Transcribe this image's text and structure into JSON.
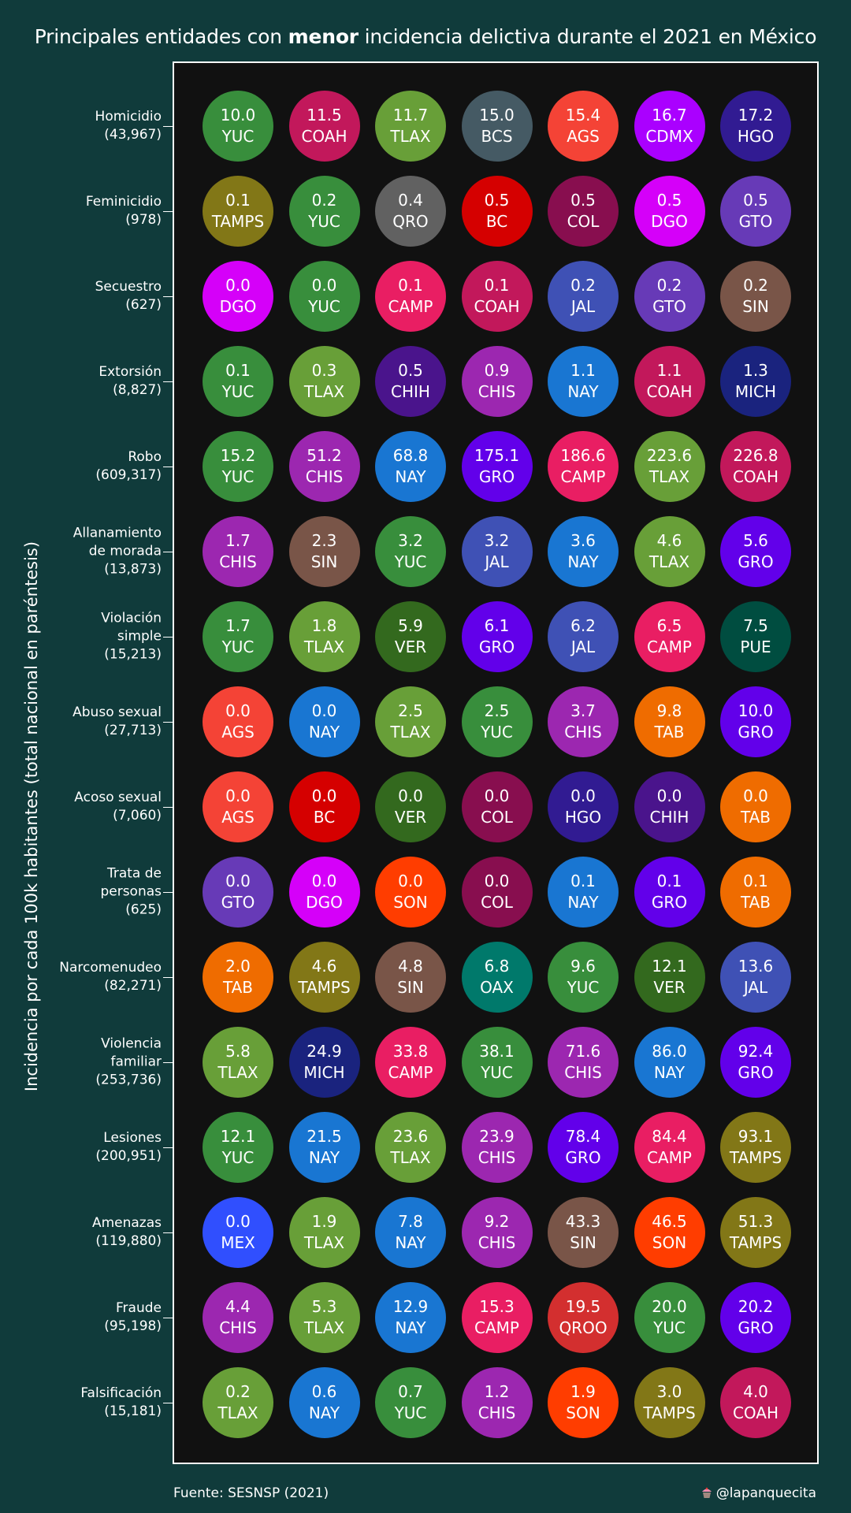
{
  "title": {
    "before": "Principales entidades con ",
    "bold": "menor",
    "after": " incidencia delictiva durante el 2021 en México"
  },
  "footer": {
    "source": "Fuente: SESNSP (2021)",
    "credit": "@lapanquecita"
  },
  "chart_data": {
    "type": "table",
    "ylabel": "Incidencia por cada 100k habitantes (total nacional en paréntesis)",
    "state_colors": {
      "YUC": "#388e3c",
      "COAH": "#c2185b",
      "TLAX": "#689f38",
      "BCS": "#455a64",
      "AGS": "#f44336",
      "CDMX": "#aa00ff",
      "HGO": "#311b92",
      "TAMPS": "#827717",
      "QRO": "#616161",
      "BC": "#d50000",
      "COL": "#880e4f",
      "DGO": "#d500f9",
      "GTO": "#673ab7",
      "CAMP": "#e91e63",
      "JAL": "#3f51b5",
      "SIN": "#795548",
      "CHIH": "#4a148c",
      "CHIS": "#9c27b0",
      "NAY": "#1976d2",
      "MICH": "#1a237e",
      "GRO": "#6200ea",
      "VER": "#33691e",
      "PUE": "#004d40",
      "TAB": "#ef6c00",
      "SON": "#ff3d00",
      "OAX": "#00796b",
      "MEX": "#304ffe",
      "QROO": "#d32f2f"
    },
    "rows": [
      {
        "label": "Homicidio\n(43,967)",
        "cells": [
          {
            "value": "10.0",
            "state": "YUC"
          },
          {
            "value": "11.5",
            "state": "COAH"
          },
          {
            "value": "11.7",
            "state": "TLAX"
          },
          {
            "value": "15.0",
            "state": "BCS"
          },
          {
            "value": "15.4",
            "state": "AGS"
          },
          {
            "value": "16.7",
            "state": "CDMX"
          },
          {
            "value": "17.2",
            "state": "HGO"
          }
        ]
      },
      {
        "label": "Feminicidio\n(978)",
        "cells": [
          {
            "value": "0.1",
            "state": "TAMPS"
          },
          {
            "value": "0.2",
            "state": "YUC"
          },
          {
            "value": "0.4",
            "state": "QRO"
          },
          {
            "value": "0.5",
            "state": "BC"
          },
          {
            "value": "0.5",
            "state": "COL"
          },
          {
            "value": "0.5",
            "state": "DGO"
          },
          {
            "value": "0.5",
            "state": "GTO"
          }
        ]
      },
      {
        "label": "Secuestro\n(627)",
        "cells": [
          {
            "value": "0.0",
            "state": "DGO"
          },
          {
            "value": "0.0",
            "state": "YUC"
          },
          {
            "value": "0.1",
            "state": "CAMP"
          },
          {
            "value": "0.1",
            "state": "COAH"
          },
          {
            "value": "0.2",
            "state": "JAL"
          },
          {
            "value": "0.2",
            "state": "GTO"
          },
          {
            "value": "0.2",
            "state": "SIN"
          }
        ]
      },
      {
        "label": "Extorsión\n(8,827)",
        "cells": [
          {
            "value": "0.1",
            "state": "YUC"
          },
          {
            "value": "0.3",
            "state": "TLAX"
          },
          {
            "value": "0.5",
            "state": "CHIH"
          },
          {
            "value": "0.9",
            "state": "CHIS"
          },
          {
            "value": "1.1",
            "state": "NAY"
          },
          {
            "value": "1.1",
            "state": "COAH"
          },
          {
            "value": "1.3",
            "state": "MICH"
          }
        ]
      },
      {
        "label": "Robo\n(609,317)",
        "cells": [
          {
            "value": "15.2",
            "state": "YUC"
          },
          {
            "value": "51.2",
            "state": "CHIS"
          },
          {
            "value": "68.8",
            "state": "NAY"
          },
          {
            "value": "175.1",
            "state": "GRO"
          },
          {
            "value": "186.6",
            "state": "CAMP"
          },
          {
            "value": "223.6",
            "state": "TLAX"
          },
          {
            "value": "226.8",
            "state": "COAH"
          }
        ]
      },
      {
        "label": "Allanamiento\nde morada\n(13,873)",
        "cells": [
          {
            "value": "1.7",
            "state": "CHIS"
          },
          {
            "value": "2.3",
            "state": "SIN"
          },
          {
            "value": "3.2",
            "state": "YUC"
          },
          {
            "value": "3.2",
            "state": "JAL"
          },
          {
            "value": "3.6",
            "state": "NAY"
          },
          {
            "value": "4.6",
            "state": "TLAX"
          },
          {
            "value": "5.6",
            "state": "GRO"
          }
        ]
      },
      {
        "label": "Violación\nsimple\n(15,213)",
        "cells": [
          {
            "value": "1.7",
            "state": "YUC"
          },
          {
            "value": "1.8",
            "state": "TLAX"
          },
          {
            "value": "5.9",
            "state": "VER"
          },
          {
            "value": "6.1",
            "state": "GRO"
          },
          {
            "value": "6.2",
            "state": "JAL"
          },
          {
            "value": "6.5",
            "state": "CAMP"
          },
          {
            "value": "7.5",
            "state": "PUE"
          }
        ]
      },
      {
        "label": "Abuso sexual\n(27,713)",
        "cells": [
          {
            "value": "0.0",
            "state": "AGS"
          },
          {
            "value": "0.0",
            "state": "NAY"
          },
          {
            "value": "2.5",
            "state": "TLAX"
          },
          {
            "value": "2.5",
            "state": "YUC"
          },
          {
            "value": "3.7",
            "state": "CHIS"
          },
          {
            "value": "9.8",
            "state": "TAB"
          },
          {
            "value": "10.0",
            "state": "GRO"
          }
        ]
      },
      {
        "label": "Acoso sexual\n(7,060)",
        "cells": [
          {
            "value": "0.0",
            "state": "AGS"
          },
          {
            "value": "0.0",
            "state": "BC"
          },
          {
            "value": "0.0",
            "state": "VER"
          },
          {
            "value": "0.0",
            "state": "COL"
          },
          {
            "value": "0.0",
            "state": "HGO"
          },
          {
            "value": "0.0",
            "state": "CHIH"
          },
          {
            "value": "0.0",
            "state": "TAB"
          }
        ]
      },
      {
        "label": "Trata de\npersonas\n(625)",
        "cells": [
          {
            "value": "0.0",
            "state": "GTO"
          },
          {
            "value": "0.0",
            "state": "DGO"
          },
          {
            "value": "0.0",
            "state": "SON"
          },
          {
            "value": "0.0",
            "state": "COL"
          },
          {
            "value": "0.1",
            "state": "NAY"
          },
          {
            "value": "0.1",
            "state": "GRO"
          },
          {
            "value": "0.1",
            "state": "TAB"
          }
        ]
      },
      {
        "label": "Narcomenudeo\n(82,271)",
        "cells": [
          {
            "value": "2.0",
            "state": "TAB"
          },
          {
            "value": "4.6",
            "state": "TAMPS"
          },
          {
            "value": "4.8",
            "state": "SIN"
          },
          {
            "value": "6.8",
            "state": "OAX"
          },
          {
            "value": "9.6",
            "state": "YUC"
          },
          {
            "value": "12.1",
            "state": "VER"
          },
          {
            "value": "13.6",
            "state": "JAL"
          }
        ]
      },
      {
        "label": "Violencia\nfamiliar\n(253,736)",
        "cells": [
          {
            "value": "5.8",
            "state": "TLAX"
          },
          {
            "value": "24.9",
            "state": "MICH"
          },
          {
            "value": "33.8",
            "state": "CAMP"
          },
          {
            "value": "38.1",
            "state": "YUC"
          },
          {
            "value": "71.6",
            "state": "CHIS"
          },
          {
            "value": "86.0",
            "state": "NAY"
          },
          {
            "value": "92.4",
            "state": "GRO"
          }
        ]
      },
      {
        "label": "Lesiones\n(200,951)",
        "cells": [
          {
            "value": "12.1",
            "state": "YUC"
          },
          {
            "value": "21.5",
            "state": "NAY"
          },
          {
            "value": "23.6",
            "state": "TLAX"
          },
          {
            "value": "23.9",
            "state": "CHIS"
          },
          {
            "value": "78.4",
            "state": "GRO"
          },
          {
            "value": "84.4",
            "state": "CAMP"
          },
          {
            "value": "93.1",
            "state": "TAMPS"
          }
        ]
      },
      {
        "label": "Amenazas\n(119,880)",
        "cells": [
          {
            "value": "0.0",
            "state": "MEX"
          },
          {
            "value": "1.9",
            "state": "TLAX"
          },
          {
            "value": "7.8",
            "state": "NAY"
          },
          {
            "value": "9.2",
            "state": "CHIS"
          },
          {
            "value": "43.3",
            "state": "SIN"
          },
          {
            "value": "46.5",
            "state": "SON"
          },
          {
            "value": "51.3",
            "state": "TAMPS"
          }
        ]
      },
      {
        "label": "Fraude\n(95,198)",
        "cells": [
          {
            "value": "4.4",
            "state": "CHIS"
          },
          {
            "value": "5.3",
            "state": "TLAX"
          },
          {
            "value": "12.9",
            "state": "NAY"
          },
          {
            "value": "15.3",
            "state": "CAMP"
          },
          {
            "value": "19.5",
            "state": "QROO"
          },
          {
            "value": "20.0",
            "state": "YUC"
          },
          {
            "value": "20.2",
            "state": "GRO"
          }
        ]
      },
      {
        "label": "Falsificación\n(15,181)",
        "cells": [
          {
            "value": "0.2",
            "state": "TLAX"
          },
          {
            "value": "0.6",
            "state": "NAY"
          },
          {
            "value": "0.7",
            "state": "YUC"
          },
          {
            "value": "1.2",
            "state": "CHIS"
          },
          {
            "value": "1.9",
            "state": "SON"
          },
          {
            "value": "3.0",
            "state": "TAMPS"
          },
          {
            "value": "4.0",
            "state": "COAH"
          }
        ]
      }
    ]
  }
}
